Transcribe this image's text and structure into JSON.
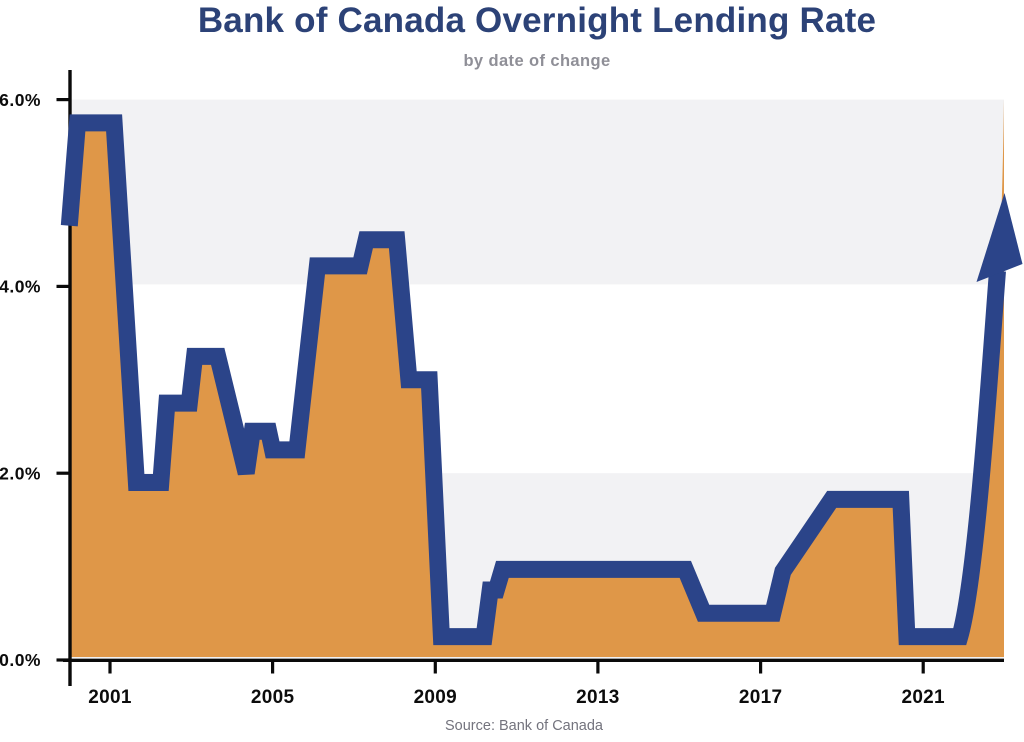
{
  "page": {
    "title": "Bank of Canada Overnight Lending Rate",
    "subtitle": "by date of change",
    "source": "Source: Bank of Canada"
  },
  "chart_data": {
    "type": "area",
    "title": "Bank of Canada Overnight Lending Rate",
    "subtitle": "by date of change",
    "source": "Source: Bank of Canada",
    "series_name": "Overnight lending rate (%)",
    "unit": "%",
    "x_axis": {
      "range": [
        2000,
        2023
      ],
      "tick_years": [
        2001,
        2005,
        2009,
        2013,
        2017,
        2021
      ],
      "tick_labels": [
        "2001",
        "2005",
        "2009",
        "2013",
        "2017",
        "2021"
      ]
    },
    "y_axis": {
      "range": [
        0,
        6
      ],
      "tick_values": [
        0,
        2,
        4,
        6
      ],
      "tick_labels": [
        "0.0%",
        "2.0%",
        "4.0%",
        "6.0%"
      ]
    },
    "bands": [
      {
        "from": 0,
        "to": 2,
        "color": "#f2f2f4"
      },
      {
        "from": 4,
        "to": 6,
        "color": "#f2f2f4"
      }
    ],
    "points": [
      [
        2000.0,
        4.65
      ],
      [
        2000.2,
        5.75
      ],
      [
        2001.1,
        5.75
      ],
      [
        2001.65,
        1.9
      ],
      [
        2002.25,
        1.9
      ],
      [
        2002.4,
        2.75
      ],
      [
        2002.95,
        2.75
      ],
      [
        2003.08,
        3.25
      ],
      [
        2003.65,
        3.25
      ],
      [
        2004.35,
        2.0
      ],
      [
        2004.5,
        2.45
      ],
      [
        2004.9,
        2.45
      ],
      [
        2005.0,
        2.25
      ],
      [
        2005.6,
        2.25
      ],
      [
        2006.1,
        4.22
      ],
      [
        2007.15,
        4.22
      ],
      [
        2007.3,
        4.5
      ],
      [
        2008.05,
        4.5
      ],
      [
        2008.35,
        3.0
      ],
      [
        2008.85,
        3.0
      ],
      [
        2009.15,
        0.25
      ],
      [
        2010.2,
        0.25
      ],
      [
        2010.35,
        0.75
      ],
      [
        2010.5,
        0.75
      ],
      [
        2010.65,
        0.97
      ],
      [
        2015.15,
        0.97
      ],
      [
        2015.6,
        0.5
      ],
      [
        2017.3,
        0.5
      ],
      [
        2017.55,
        0.95
      ],
      [
        2018.75,
        1.72
      ],
      [
        2020.45,
        1.72
      ],
      [
        2020.6,
        0.25
      ],
      [
        2021.9,
        0.25
      ]
    ],
    "arrow": {
      "tip_year": 2023.0,
      "tip_rate": 5.0
    },
    "fill_end_rate": 6.0,
    "colors": {
      "line": "#2b4489",
      "fill": "#df9748",
      "band": "#f2f2f4",
      "axis": "#0a0a0a",
      "title": "#2c4277",
      "subtitle": "#8f8f97",
      "source": "#73737d"
    },
    "legend": "none",
    "grid": "off"
  }
}
